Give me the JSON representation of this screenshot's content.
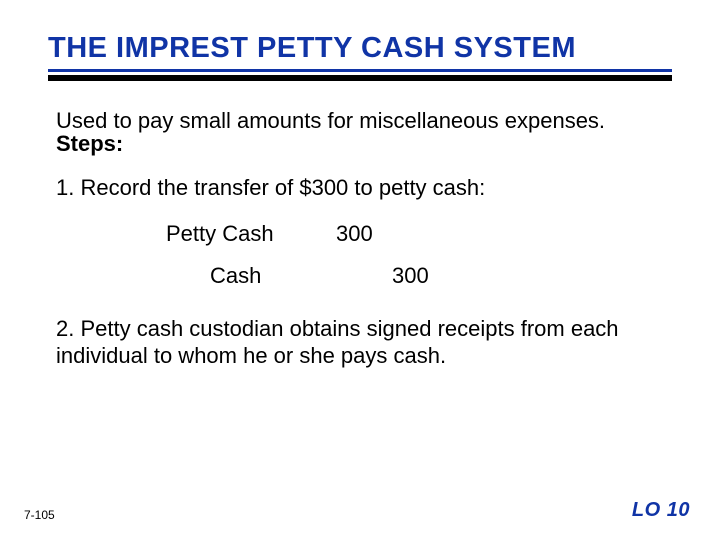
{
  "title": {
    "text": "THE IMPREST PETTY CASH SYSTEM",
    "color": "#1034a6",
    "fontsize": 29
  },
  "rule_color": "#1034a6",
  "body_fontsize": 22,
  "intro": "Used to pay small amounts for miscellaneous expenses.",
  "steps_label": "Steps:",
  "step1": "1.  Record the transfer of $300 to petty cash:",
  "journal": {
    "debit_account": "Petty Cash",
    "debit_amount": "300",
    "credit_account": "Cash",
    "credit_amount": "300"
  },
  "step2": "2.  Petty cash custodian obtains signed receipts from each individual to whom he or she pays cash.",
  "footer": {
    "page": "7-105",
    "lo": "LO 10",
    "lo_color": "#1034a6",
    "lo_fontsize": 20
  }
}
